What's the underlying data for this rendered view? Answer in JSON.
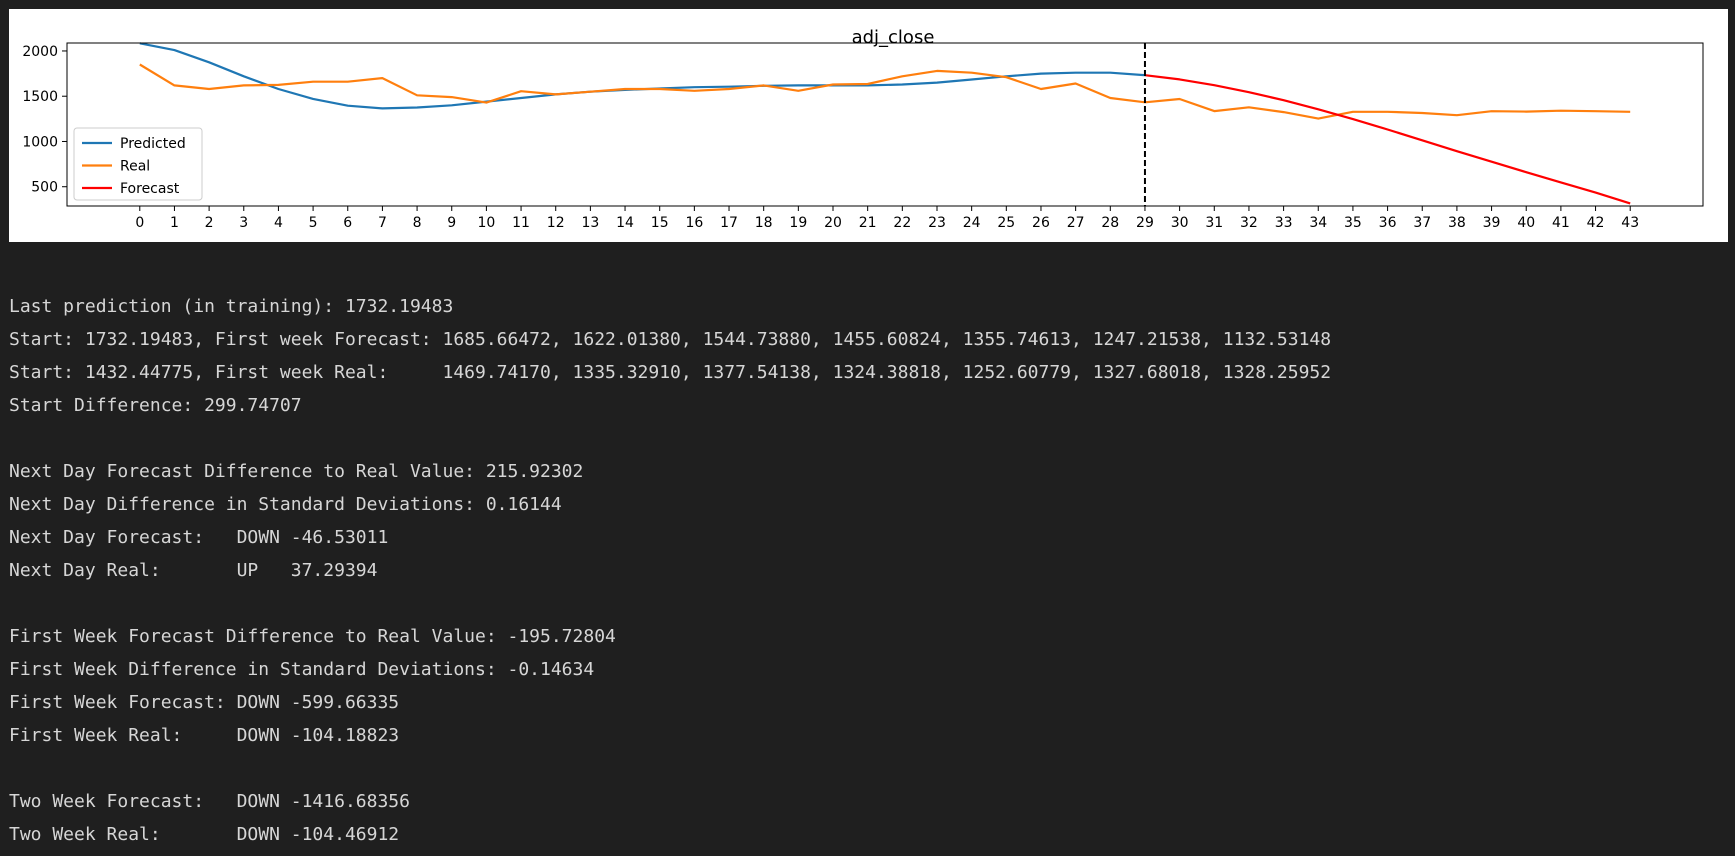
{
  "chart_data": {
    "type": "line",
    "title": "adj_close",
    "xlabel": "",
    "ylabel": "",
    "x": [
      0,
      1,
      2,
      3,
      4,
      5,
      6,
      7,
      8,
      9,
      10,
      11,
      12,
      13,
      14,
      15,
      16,
      17,
      18,
      19,
      20,
      21,
      22,
      23,
      24,
      25,
      26,
      27,
      28,
      29,
      30,
      31,
      32,
      33,
      34,
      35,
      36,
      37,
      38,
      39,
      40,
      41,
      42,
      43
    ],
    "xlim": [
      -2.1,
      45.1
    ],
    "ylim": [
      287,
      2088
    ],
    "yticks": [
      500,
      1000,
      1500,
      2000
    ],
    "grid": false,
    "legend_position": "lower-left",
    "vline_x": 29,
    "series": [
      {
        "name": "Predicted",
        "color": "#1f77b4",
        "x": [
          0,
          1,
          2,
          3,
          4,
          5,
          6,
          7,
          8,
          9,
          10,
          11,
          12,
          13,
          14,
          15,
          16,
          17,
          18,
          19,
          20,
          21,
          22,
          23,
          24,
          25,
          26,
          27,
          28,
          29
        ],
        "values": [
          2085,
          2010,
          1875,
          1720,
          1580,
          1470,
          1395,
          1365,
          1375,
          1400,
          1440,
          1480,
          1520,
          1550,
          1570,
          1585,
          1600,
          1605,
          1615,
          1620,
          1620,
          1620,
          1630,
          1650,
          1685,
          1720,
          1750,
          1760,
          1760,
          1732.19
        ]
      },
      {
        "name": "Real",
        "color": "#ff7f0e",
        "x": [
          0,
          1,
          2,
          3,
          4,
          5,
          6,
          7,
          8,
          9,
          10,
          11,
          12,
          13,
          14,
          15,
          16,
          17,
          18,
          19,
          20,
          21,
          22,
          23,
          24,
          25,
          26,
          27,
          28,
          29,
          30,
          31,
          32,
          33,
          34,
          35,
          36,
          37,
          38,
          39,
          40,
          41,
          42,
          43
        ],
        "values": [
          1850,
          1620,
          1580,
          1620,
          1625,
          1660,
          1660,
          1700,
          1510,
          1490,
          1430,
          1555,
          1520,
          1550,
          1580,
          1580,
          1560,
          1580,
          1620,
          1560,
          1630,
          1635,
          1720,
          1780,
          1760,
          1710,
          1580,
          1640,
          1480,
          1432.45,
          1469.74,
          1335.33,
          1377.54,
          1324.39,
          1252.61,
          1327.68,
          1328.26,
          1315,
          1290,
          1335,
          1330,
          1340,
          1335,
          1328
        ]
      },
      {
        "name": "Forecast",
        "color": "#ff0000",
        "x": [
          29,
          30,
          31,
          32,
          33,
          34,
          35,
          36,
          37,
          38,
          39,
          40,
          41,
          42,
          43
        ],
        "values": [
          1732.19,
          1685.66,
          1622.01,
          1544.74,
          1455.61,
          1355.75,
          1247.22,
          1132.53,
          1013,
          893,
          776,
          661,
          548,
          435,
          316
        ]
      }
    ]
  },
  "output": {
    "lines": [
      "Last prediction (in training): 1732.19483",
      "Start: 1732.19483, First week Forecast: 1685.66472, 1622.01380, 1544.73880, 1455.60824, 1355.74613, 1247.21538, 1132.53148",
      "Start: 1432.44775, First week Real:     1469.74170, 1335.32910, 1377.54138, 1324.38818, 1252.60779, 1327.68018, 1328.25952",
      "Start Difference: 299.74707",
      "",
      "Next Day Forecast Difference to Real Value: 215.92302",
      "Next Day Difference in Standard Deviations: 0.16144",
      "Next Day Forecast:   DOWN -46.53011",
      "Next Day Real:       UP   37.29394",
      "",
      "First Week Forecast Difference to Real Value: -195.72804",
      "First Week Difference in Standard Deviations: -0.14634",
      "First Week Forecast: DOWN -599.66335",
      "First Week Real:     DOWN -104.18823",
      "",
      "Two Week Forecast:   DOWN -1416.68356",
      "Two Week Real:       DOWN -104.46912"
    ]
  }
}
